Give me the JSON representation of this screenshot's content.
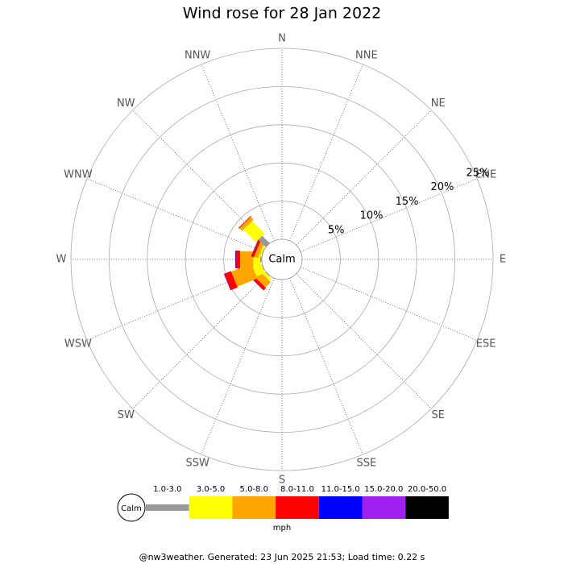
{
  "chart_data": {
    "type": "windrose",
    "title": "Wind rose for 28 Jan 2022",
    "center_label": "Calm",
    "categories": [
      "N",
      "NNE",
      "NE",
      "ENE",
      "E",
      "ESE",
      "SE",
      "SSE",
      "S",
      "SSW",
      "SW",
      "WSW",
      "W",
      "WNW",
      "NW",
      "NNW"
    ],
    "series": [
      {
        "name": "1.0-3.0",
        "color": "#999999",
        "values": [
          0,
          0,
          0,
          0,
          0,
          0,
          0,
          0,
          0,
          0,
          0.1,
          0.1,
          0.23,
          0.1,
          1.4,
          0
        ]
      },
      {
        "name": "3.0-5.0",
        "color": "#ffff00",
        "values": [
          0,
          0,
          0,
          0,
          0,
          0,
          0,
          0,
          0,
          0,
          0.4,
          1.18,
          0.89,
          0.23,
          2.3,
          0
        ]
      },
      {
        "name": "5.0-8.0",
        "color": "#ffa500",
        "values": [
          0,
          0,
          0,
          0,
          0,
          0,
          0,
          0,
          0,
          0,
          1.0,
          2.85,
          1.73,
          0.55,
          0.5,
          0
        ]
      },
      {
        "name": "8.0-11.0",
        "color": "#ff0000",
        "values": [
          0,
          0,
          0,
          0,
          0,
          0,
          0,
          0,
          0,
          0,
          0.45,
          0.95,
          0.57,
          0.34,
          0.1,
          0
        ]
      },
      {
        "name": "11.0-15.0",
        "color": "#0000ff",
        "values": [
          0,
          0,
          0,
          0,
          0,
          0,
          0,
          0,
          0,
          0,
          0,
          0.05,
          0.06,
          0.04,
          0,
          0
        ]
      },
      {
        "name": "15.0-20.0",
        "color": "#a020f0",
        "values": [
          0,
          0,
          0,
          0,
          0,
          0,
          0,
          0,
          0,
          0,
          0,
          0,
          0,
          0,
          0,
          0
        ]
      },
      {
        "name": "20.0-50.0",
        "color": "#000000",
        "values": [
          0,
          0,
          0,
          0,
          0,
          0,
          0,
          0,
          0,
          0,
          0,
          0,
          0,
          0,
          0,
          0
        ]
      }
    ],
    "rlim": [
      0,
      25
    ],
    "rticks": [
      {
        "value": 5,
        "label": "5%"
      },
      {
        "value": 10,
        "label": "10%"
      },
      {
        "value": 15,
        "label": "15%"
      },
      {
        "value": 20,
        "label": "20%"
      },
      {
        "value": 25,
        "label": "25%"
      }
    ],
    "legend_title": "mph",
    "footer": "@nw3weather. Generated: 23 Jun 2025 21:53; Load time: 0.22 s"
  }
}
